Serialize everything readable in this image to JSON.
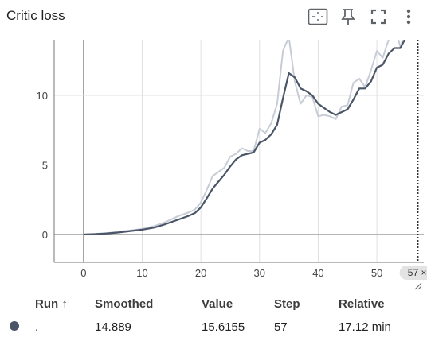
{
  "panel": {
    "title": "Critic loss",
    "icons": [
      "fit-domain-icon",
      "pin-icon",
      "fullscreen-icon",
      "more-vert-icon"
    ]
  },
  "chart_data": {
    "type": "line",
    "title": "Critic loss",
    "xlabel": "",
    "ylabel": "",
    "xlim": [
      -5,
      58
    ],
    "ylim": [
      -2,
      14
    ],
    "x_ticks": [
      0,
      10,
      20,
      30,
      40,
      50
    ],
    "y_ticks": [
      0,
      5,
      10
    ],
    "grid": true,
    "step_marker": 57,
    "series": [
      {
        "role": "raw",
        "color": "#c7ccd6",
        "x": [
          0,
          2,
          4,
          6,
          8,
          10,
          12,
          14,
          16,
          18,
          19,
          20,
          21,
          22,
          23,
          24,
          25,
          26,
          27,
          28,
          29,
          30,
          31,
          32,
          33,
          34,
          35,
          36,
          37,
          38,
          39,
          40,
          41,
          42,
          43,
          44,
          45,
          46,
          47,
          48,
          49,
          50,
          51,
          52,
          53,
          54,
          55,
          56,
          57
        ],
        "y": [
          0,
          0.05,
          0.1,
          0.2,
          0.3,
          0.4,
          0.6,
          0.9,
          1.3,
          1.6,
          1.8,
          2.3,
          3.2,
          4.2,
          4.5,
          4.8,
          5.6,
          5.8,
          6.2,
          6.0,
          6.0,
          7.6,
          7.3,
          8.0,
          9.4,
          13.2,
          14.2,
          11.0,
          9.4,
          10.0,
          9.9,
          8.5,
          8.6,
          8.5,
          8.3,
          9.2,
          9.3,
          10.9,
          11.2,
          10.6,
          11.8,
          13.2,
          12.7,
          14.0,
          15.0,
          13.5,
          14.6,
          15.4,
          15.6155
        ]
      },
      {
        "role": "smoothed",
        "color": "#4a5568",
        "x": [
          0,
          2,
          4,
          6,
          8,
          10,
          12,
          14,
          16,
          18,
          19,
          20,
          21,
          22,
          23,
          24,
          25,
          26,
          27,
          28,
          29,
          30,
          31,
          32,
          33,
          34,
          35,
          36,
          37,
          38,
          39,
          40,
          41,
          42,
          43,
          44,
          45,
          46,
          47,
          48,
          49,
          50,
          51,
          52,
          53,
          54,
          55,
          56,
          57
        ],
        "y": [
          0,
          0.03,
          0.08,
          0.15,
          0.25,
          0.35,
          0.5,
          0.75,
          1.05,
          1.35,
          1.55,
          1.95,
          2.6,
          3.3,
          3.8,
          4.3,
          4.9,
          5.4,
          5.7,
          5.8,
          5.9,
          6.6,
          6.8,
          7.2,
          7.9,
          9.8,
          11.6,
          11.3,
          10.5,
          10.3,
          10.0,
          9.4,
          9.1,
          8.8,
          8.6,
          8.8,
          9.0,
          9.7,
          10.5,
          10.5,
          11.0,
          12.0,
          12.2,
          13.0,
          13.4,
          13.4,
          14.2,
          14.6,
          14.889
        ]
      }
    ]
  },
  "table": {
    "headers": {
      "run": "Run ↑",
      "smoothed": "Smoothed",
      "value": "Value",
      "step": "Step",
      "relative": "Relative"
    },
    "rows": [
      {
        "color": "#4a5568",
        "run": ".",
        "smoothed": "14.889",
        "value": "15.6155",
        "step": "57",
        "relative": "17.12 min"
      }
    ]
  },
  "step_chip": "57 ×"
}
